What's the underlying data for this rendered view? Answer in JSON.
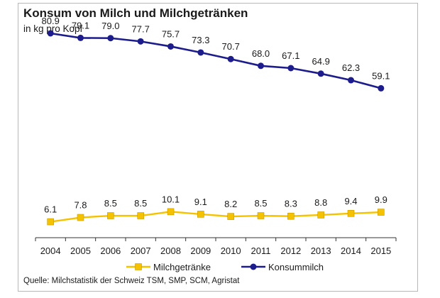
{
  "chart_data": {
    "type": "line",
    "title": "Konsum von Milch und Milchgetränken",
    "subtitle": "in kg pro Kopf",
    "source": "Quelle: Milchstatistik der Schweiz  TSM, SMP, SCM, Agristat",
    "categories": [
      "2004",
      "2005",
      "2006",
      "2007",
      "2008",
      "2009",
      "2010",
      "2011",
      "2012",
      "2013",
      "2014",
      "2015"
    ],
    "series": [
      {
        "name": "Milchgetränke",
        "color": "#f5c200",
        "marker": "square",
        "values": [
          6.1,
          7.8,
          8.5,
          8.5,
          10.1,
          9.1,
          8.2,
          8.5,
          8.3,
          8.8,
          9.4,
          9.9
        ],
        "labels": [
          "6.1",
          "7.8",
          "8.5",
          "8.5",
          "10.1",
          "9.1",
          "8.2",
          "8.5",
          "8.3",
          "8.8",
          "9.4",
          "9.9"
        ]
      },
      {
        "name": "Konsummilch",
        "color": "#1c1c8c",
        "marker": "circle",
        "values": [
          80.9,
          79.1,
          79.0,
          77.7,
          75.7,
          73.3,
          70.7,
          68.0,
          67.1,
          64.9,
          62.3,
          59.1
        ],
        "labels": [
          "80.9",
          "79.1",
          "79.0",
          "77.7",
          "75.7",
          "73.3",
          "70.7",
          "68.0",
          "67.1",
          "64.9",
          "62.3",
          "59.1"
        ]
      }
    ],
    "xlabel": "",
    "ylabel": "",
    "grid": false,
    "legend_position": "bottom"
  }
}
